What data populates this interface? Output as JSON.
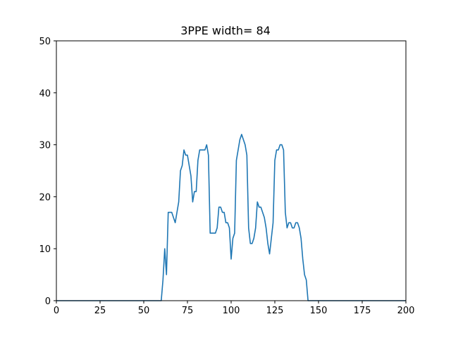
{
  "chart_data": {
    "type": "line",
    "title": "3PPE width= 84",
    "xlabel": "",
    "ylabel": "",
    "xlim": [
      0,
      200
    ],
    "ylim": [
      0,
      50
    ],
    "xticks": [
      0,
      25,
      50,
      75,
      100,
      125,
      150,
      175,
      200
    ],
    "yticks": [
      0,
      10,
      20,
      30,
      40,
      50
    ],
    "grid": false,
    "series": [
      {
        "color": "#1f77b4",
        "x": [
          0,
          60,
          61,
          62,
          63,
          64,
          65,
          66,
          67,
          68,
          69,
          70,
          71,
          72,
          73,
          74,
          75,
          76,
          77,
          78,
          79,
          80,
          81,
          82,
          83,
          84,
          85,
          86,
          87,
          88,
          89,
          90,
          91,
          92,
          93,
          94,
          95,
          96,
          97,
          98,
          99,
          100,
          101,
          102,
          103,
          104,
          105,
          106,
          107,
          108,
          109,
          110,
          111,
          112,
          113,
          114,
          115,
          116,
          117,
          118,
          119,
          120,
          121,
          122,
          123,
          124,
          125,
          126,
          127,
          128,
          129,
          130,
          131,
          132,
          133,
          134,
          135,
          136,
          137,
          138,
          139,
          140,
          141,
          142,
          143,
          144,
          200
        ],
        "y": [
          0,
          0,
          4,
          10,
          5,
          17,
          17,
          17,
          16,
          15,
          17,
          19,
          25,
          26,
          29,
          28,
          28,
          26,
          24,
          19,
          21,
          21,
          27,
          29,
          29,
          29,
          29,
          30,
          28,
          13,
          13,
          13,
          13,
          14,
          18,
          18,
          17,
          17,
          15,
          15,
          14,
          8,
          12,
          13,
          27,
          29,
          31,
          32,
          31,
          30,
          28,
          14,
          11,
          11,
          12,
          14,
          19,
          18,
          18,
          17,
          16,
          14,
          11,
          9,
          12,
          15,
          27,
          29,
          29,
          30,
          30,
          29,
          17,
          14,
          15,
          15,
          14,
          14,
          15,
          15,
          14,
          12,
          8,
          5,
          4,
          0,
          0
        ]
      }
    ]
  }
}
